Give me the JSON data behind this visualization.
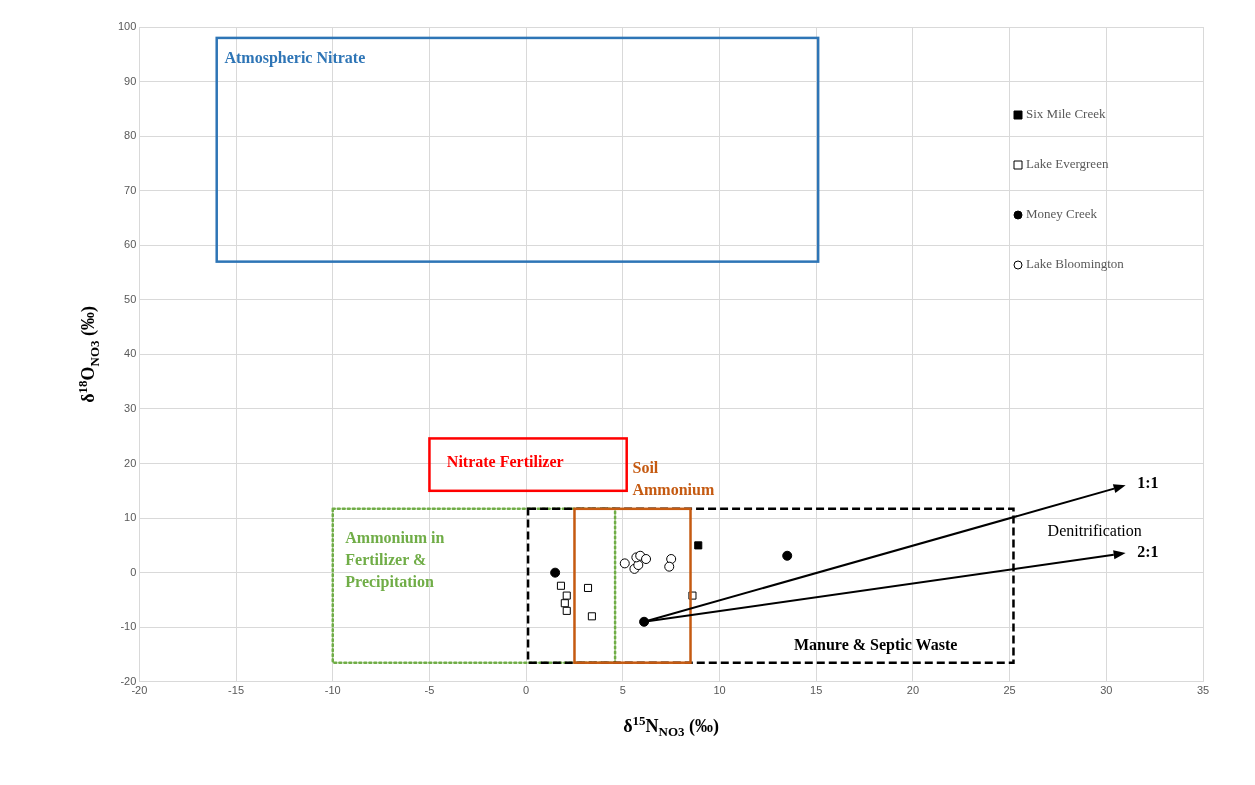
{
  "chart_data": {
    "type": "scatter",
    "xlabel": "δ$^{15}$N$_{NO3}$ (‰)",
    "ylabel": "δ$^{18}$O$_{NO3}$ (‰)",
    "xlim": [
      -20,
      35
    ],
    "xticks": [
      -20,
      -15,
      -10,
      -5,
      0,
      5,
      10,
      15,
      20,
      25,
      30,
      35
    ],
    "ylim": [
      -20,
      100
    ],
    "yticks": [
      -20,
      -10,
      0,
      10,
      20,
      30,
      40,
      50,
      60,
      70,
      80,
      90,
      100
    ],
    "grid": true,
    "legend": "top right",
    "series": [
      {
        "name": "Six Mile Creek",
        "color": "#000000",
        "marker": "square",
        "x": [
          8.9
        ],
        "values": [
          5
        ]
      },
      {
        "name": "Lake Evergreen",
        "color": "#ffffff",
        "marker": "square",
        "x": [
          1.8,
          2.1,
          2.0,
          2.1,
          3.2,
          3.4,
          8.6
        ],
        "values": [
          -2.4,
          -4.2,
          -5.6,
          -7.0,
          -2.8,
          -8.0,
          -4.2
        ]
      },
      {
        "name": "Money Creek",
        "color": "#000000",
        "marker": "circle",
        "x": [
          1.5,
          13.5,
          6.1
        ],
        "values": [
          0,
          3.1,
          -9
        ]
      },
      {
        "name": "Lake Bloomington",
        "color": "#ffffff",
        "marker": "circle",
        "x": [
          5.1,
          5.6,
          5.8,
          5.7,
          5.9,
          6.2,
          7.5,
          7.4
        ],
        "values": [
          1.7,
          0.7,
          1.4,
          2.8,
          3.1,
          2.5,
          2.5,
          1.1
        ]
      }
    ],
    "annotations": [
      "Atmospheric Nitrate",
      "Nitrate Fertilizer",
      "Ammonium in Fertilizer & Precipitation",
      "Soil Ammonium",
      "Manure & Septic Waste",
      "1:1",
      "2:1",
      "Denitrification"
    ]
  }
}
